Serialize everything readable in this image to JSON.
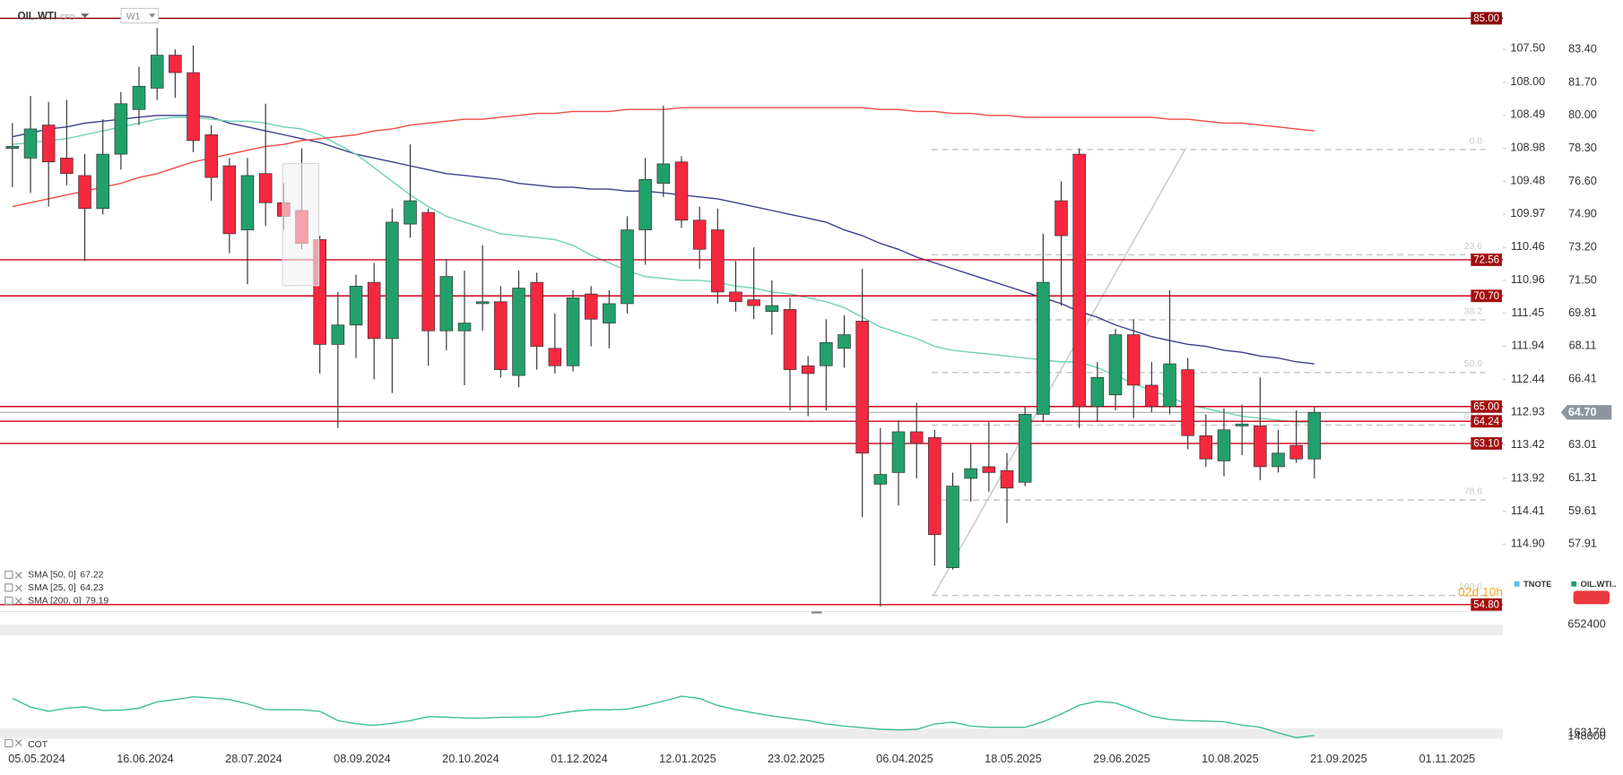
{
  "header": {
    "symbol": "OIL.WTI",
    "instrument": "CFD",
    "timeframe": "W1"
  },
  "chart_data": [
    {
      "type": "candlestick",
      "categories": [
        null,
        "05.05.2024",
        null,
        null,
        null,
        null,
        null,
        "16.06.2024",
        null,
        null,
        null,
        null,
        null,
        "28.07.2024",
        null,
        null,
        null,
        null,
        null,
        "08.09.2024",
        null,
        null,
        null,
        null,
        null,
        "20.10.2024",
        null,
        null,
        null,
        null,
        null,
        "01.12.2024",
        null,
        null,
        null,
        null,
        null,
        "12.01.2025",
        null,
        null,
        null,
        null,
        null,
        "23.02.2025",
        null,
        null,
        null,
        null,
        null,
        "06.04.2025",
        null,
        null,
        null,
        null,
        null,
        "18.05.2025",
        null,
        null,
        null,
        null,
        null,
        "29.06.2025",
        null,
        null,
        null,
        null,
        null,
        "10.08.2025",
        null,
        null,
        null,
        null,
        null,
        "21.09.2025",
        null,
        null,
        null,
        null,
        null,
        "01.11.2025",
        null,
        null,
        null
      ],
      "series": [
        {
          "name": "OIL.WTI..",
          "color_up": "#22a06b",
          "color_down": "#f5283f",
          "open": [
            78.3,
            77.8,
            79.5,
            77.8,
            76.9,
            75.2,
            78.0,
            80.3,
            81.4,
            83.1,
            82.2,
            79.0,
            77.4,
            74.1,
            77.0,
            75.5,
            75.1,
            73.6,
            68.2,
            69.2,
            71.4,
            68.5,
            74.4,
            75.0,
            68.9,
            68.9,
            70.3,
            70.4,
            66.6,
            71.4,
            68.0,
            67.1,
            70.8,
            69.3,
            70.3,
            74.1,
            76.5,
            77.6,
            74.6,
            74.1,
            70.9,
            70.5,
            69.9,
            70.0,
            67.1,
            67.1,
            68.0,
            69.4,
            61.0,
            61.6,
            63.7,
            63.4,
            56.7,
            61.3,
            61.9,
            61.7,
            61.1,
            64.6,
            75.6,
            78.0,
            65.0,
            65.6,
            68.7,
            66.1,
            65.0,
            66.9,
            63.5,
            62.2,
            64.0,
            64.0,
            61.9,
            63.0,
            62.3,
            null,
            null,
            null,
            null,
            null,
            null,
            null,
            null,
            null,
            null
          ],
          "high": [
            79.6,
            81.0,
            80.7,
            80.8,
            78.0,
            79.8,
            81.2,
            82.5,
            84.5,
            83.4,
            83.6,
            79.5,
            77.8,
            77.8,
            80.6,
            76.5,
            78.3,
            73.8,
            70.9,
            71.8,
            72.4,
            75.2,
            78.5,
            75.2,
            72.6,
            72.0,
            73.3,
            71.2,
            72.0,
            71.9,
            69.8,
            71.0,
            71.2,
            71.0,
            74.8,
            77.8,
            80.5,
            77.9,
            75.3,
            75.2,
            72.5,
            73.2,
            71.5,
            70.6,
            67.6,
            69.5,
            69.7,
            72.1,
            63.9,
            64.3,
            65.2,
            63.8,
            61.6,
            63.1,
            64.2,
            62.6,
            65.0,
            73.9,
            76.6,
            78.3,
            67.3,
            69.0,
            69.5,
            67.3,
            71.0,
            67.5,
            64.6,
            64.9,
            65.1,
            66.5,
            63.8,
            64.8,
            65.0,
            null,
            null,
            null,
            null,
            null,
            null,
            null,
            null,
            null,
            null
          ],
          "low": [
            76.3,
            76.0,
            75.3,
            76.4,
            72.5,
            74.9,
            77.2,
            79.5,
            80.8,
            80.9,
            78.1,
            75.6,
            72.9,
            71.3,
            74.3,
            74.1,
            73.1,
            66.7,
            63.9,
            67.5,
            66.4,
            65.7,
            73.7,
            67.1,
            67.9,
            66.1,
            68.9,
            66.5,
            66.0,
            66.9,
            66.7,
            66.8,
            68.1,
            68.0,
            69.8,
            72.3,
            75.8,
            74.2,
            72.1,
            70.3,
            69.9,
            69.5,
            68.7,
            64.8,
            64.5,
            64.8,
            67.0,
            59.3,
            54.7,
            59.9,
            61.3,
            56.8,
            56.6,
            60.1,
            60.6,
            59.0,
            60.9,
            64.2,
            70.2,
            63.9,
            64.2,
            64.8,
            64.4,
            64.7,
            64.6,
            62.8,
            61.9,
            61.4,
            62.5,
            61.2,
            61.6,
            62.1,
            61.3,
            null,
            null,
            null,
            null,
            null,
            null,
            null,
            null,
            null,
            null
          ],
          "close": [
            78.4,
            79.3,
            77.6,
            77.0,
            75.2,
            78.0,
            80.6,
            81.5,
            83.1,
            82.2,
            78.7,
            76.8,
            73.9,
            76.9,
            75.5,
            74.8,
            73.4,
            68.2,
            69.2,
            71.2,
            68.5,
            74.5,
            75.6,
            68.9,
            71.7,
            69.3,
            70.4,
            66.9,
            71.1,
            68.1,
            67.1,
            70.6,
            69.5,
            70.3,
            74.1,
            76.7,
            77.5,
            74.6,
            73.1,
            70.9,
            70.4,
            70.2,
            70.2,
            66.9,
            66.7,
            68.3,
            68.7,
            62.6,
            61.5,
            63.7,
            63.1,
            58.4,
            60.9,
            61.8,
            61.6,
            60.8,
            64.6,
            71.4,
            73.8,
            65.0,
            66.5,
            68.7,
            66.1,
            65.0,
            67.2,
            63.5,
            62.3,
            63.8,
            64.1,
            61.9,
            62.6,
            62.3,
            64.7,
            null,
            null,
            null,
            null,
            null,
            null,
            null,
            null,
            null,
            null
          ]
        }
      ],
      "ylim": [
        54.5,
        85.4
      ],
      "yticks": [
        {
          "value": 83.4,
          "label": "83.40"
        },
        {
          "value": 81.7,
          "label": "81.70"
        },
        {
          "value": 80,
          "label": "80.00"
        },
        {
          "value": 78.3,
          "label": "78.30"
        },
        {
          "value": 76.6,
          "label": "76.60"
        },
        {
          "value": 74.9,
          "label": "74.90"
        },
        {
          "value": 73.2,
          "label": "73.20"
        },
        {
          "value": 71.5,
          "label": "71.50"
        },
        69.81,
        68.11,
        66.41,
        63.01,
        61.31,
        59.61,
        57.91
      ],
      "y2_name": "TNOTE",
      "y2_color": "#5bc0eb",
      "y2lim": [
        106.93,
        115.89
      ],
      "y2ticks": [
        {
          "value": 107.5,
          "label": "107.50"
        },
        {
          "value": 108,
          "label": "108.00"
        },
        108.49,
        108.98,
        109.48,
        109.97,
        110.46,
        110.96,
        111.45,
        111.94,
        112.44,
        112.93,
        113.42,
        113.92,
        114.41,
        {
          "value": 114.9,
          "label": "114.90"
        }
      ],
      "grid": false,
      "level_color": "#d0021b",
      "levels": [
        {
          "value": 85,
          "label": "85.00"
        },
        72.56,
        {
          "value": 70.7,
          "label": "70.70"
        },
        {
          "value": 65,
          "label": "65.00"
        },
        64.24,
        {
          "value": 63.1,
          "label": "63.10"
        },
        {
          "value": 54.8,
          "label": "54.80"
        }
      ],
      "last_price": {
        "value": 64.7,
        "label": "64.70"
      },
      "indicators": [
        {
          "name": "SMA [50, 0]",
          "value": 67.22,
          "color": "#3b3f8f",
          "values": [
            78.9,
            79.1,
            79.3,
            79.4,
            79.6,
            79.7,
            79.8,
            79.9,
            80.0,
            80.0,
            80.0,
            79.9,
            79.6,
            79.4,
            79.2,
            79.0,
            78.8,
            78.6,
            78.3,
            78.0,
            77.8,
            77.6,
            77.4,
            77.2,
            77.0,
            76.9,
            76.8,
            76.7,
            76.5,
            76.4,
            76.3,
            76.3,
            76.2,
            76.2,
            76.1,
            76.1,
            76.0,
            75.9,
            75.8,
            75.7,
            75.5,
            75.3,
            75.1,
            74.9,
            74.7,
            74.5,
            74.1,
            73.8,
            73.4,
            73.1,
            72.7,
            72.4,
            72.1,
            71.8,
            71.5,
            71.2,
            70.9,
            70.6,
            70.3,
            69.9,
            69.6,
            69.2,
            68.9,
            68.6,
            68.4,
            68.2,
            68.1,
            67.9,
            67.8,
            67.6,
            67.5,
            67.3,
            67.2,
            null,
            null,
            null,
            null,
            null,
            null,
            null,
            null,
            null,
            null
          ]
        },
        {
          "name": "SMA [25, 0]",
          "value": 64.23,
          "color": "#6fd1b4",
          "values": [
            78.5,
            78.6,
            78.7,
            78.8,
            79.0,
            79.2,
            79.4,
            79.6,
            79.8,
            79.9,
            79.9,
            79.8,
            79.7,
            79.7,
            79.6,
            79.4,
            79.3,
            79.0,
            78.5,
            78.0,
            77.3,
            76.6,
            75.9,
            75.3,
            74.8,
            74.5,
            74.2,
            73.9,
            73.8,
            73.7,
            73.6,
            73.3,
            72.8,
            72.4,
            72.0,
            71.7,
            71.6,
            71.5,
            71.5,
            71.4,
            71.2,
            71.1,
            70.9,
            70.8,
            70.6,
            70.4,
            70.1,
            69.6,
            69.1,
            68.8,
            68.5,
            68.1,
            67.9,
            67.8,
            67.7,
            67.6,
            67.5,
            67.4,
            67.3,
            67.3,
            67.0,
            66.6,
            66.2,
            65.8,
            65.5,
            65.1,
            64.9,
            64.7,
            64.5,
            64.4,
            64.3,
            64.2,
            64.2,
            null,
            null,
            null,
            null,
            null,
            null,
            null,
            null,
            null,
            null
          ]
        },
        {
          "name": "SMA [200, 0]",
          "value": 79.19,
          "color": "#ef4b43",
          "values": [
            75.3,
            75.5,
            75.7,
            75.9,
            76.1,
            76.3,
            76.5,
            76.8,
            77.0,
            77.3,
            77.6,
            77.8,
            78.0,
            78.2,
            78.4,
            78.5,
            78.7,
            78.8,
            78.9,
            79.0,
            79.2,
            79.3,
            79.5,
            79.6,
            79.7,
            79.8,
            79.8,
            79.9,
            80.0,
            80.1,
            80.1,
            80.2,
            80.2,
            80.2,
            80.3,
            80.3,
            80.3,
            80.4,
            80.4,
            80.4,
            80.4,
            80.4,
            80.4,
            80.4,
            80.4,
            80.4,
            80.4,
            80.4,
            80.3,
            80.3,
            80.2,
            80.2,
            80.1,
            80.1,
            80.0,
            80.0,
            79.9,
            79.9,
            79.9,
            79.9,
            79.9,
            79.9,
            79.9,
            79.9,
            79.8,
            79.8,
            79.7,
            79.6,
            79.6,
            79.5,
            79.4,
            79.3,
            79.2,
            null,
            null,
            null,
            null,
            null,
            null,
            null,
            null,
            null,
            null
          ]
        }
      ],
      "fibonacci": {
        "high": 78.24,
        "low": 55.27,
        "color": "#c8c8c8",
        "ratios": [
          {
            "value": 0,
            "label": "0.0"
          },
          23.6,
          38.2,
          {
            "value": 50,
            "label": "50.0"
          },
          61.8,
          78.6,
          {
            "value": 100,
            "label": "100.0"
          }
        ]
      },
      "countdown": "02d 10h"
    },
    {
      "type": "line",
      "series": [
        {
          "name": "COT",
          "color": "#3cbf95",
          "values": [
            321000,
            281000,
            262000,
            276000,
            282000,
            266000,
            267000,
            276000,
            305000,
            315000,
            328000,
            322000,
            315000,
            296000,
            270000,
            269000,
            269000,
            262000,
            220000,
            206000,
            199000,
            208000,
            220000,
            238000,
            236000,
            232000,
            231000,
            235000,
            236000,
            236000,
            250000,
            262000,
            269000,
            269000,
            272000,
            288000,
            308000,
            330000,
            320000,
            288000,
            270000,
            255000,
            241000,
            230000,
            220000,
            205000,
            195000,
            188000,
            181000,
            178000,
            180000,
            205000,
            213000,
            195000,
            190000,
            190000,
            190000,
            215000,
            250000,
            290000,
            307000,
            300000,
            270000,
            240000,
            225000,
            220000,
            218000,
            215000,
            200000,
            190000,
            165000,
            143000,
            153000,
            null,
            null,
            null,
            null,
            null,
            null,
            null,
            null,
            null,
            null
          ]
        }
      ],
      "ylim": [
        134000,
        671000
      ],
      "yticks": [
        652400,
        163170,
        148000
      ]
    }
  ]
}
